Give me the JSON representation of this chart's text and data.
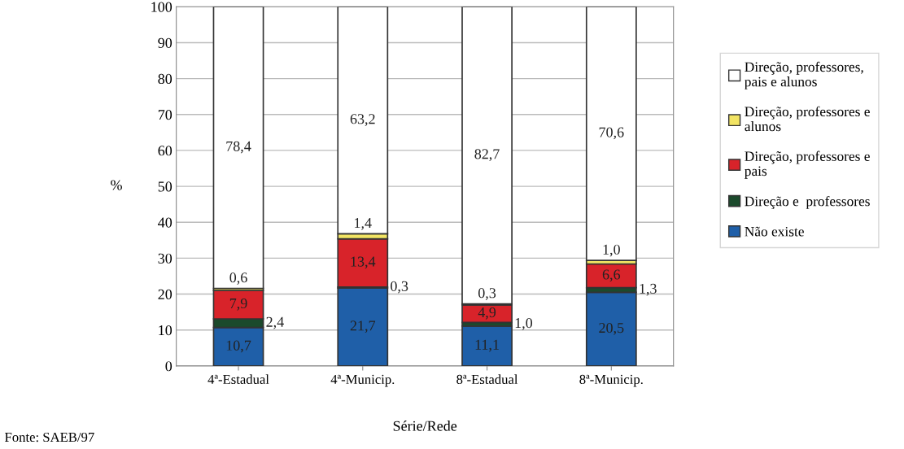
{
  "chart_data": {
    "type": "bar",
    "stacked": true,
    "ylabel": "%",
    "xlabel": "Série/Rede",
    "categories": [
      "4ª-Estadual",
      "4ª-Municip.",
      "8ª-Estadual",
      "8ª-Municip."
    ],
    "series": [
      {
        "name": "Não existe",
        "color": "#1f5fa8",
        "values": [
          10.7,
          21.7,
          11.1,
          20.5
        ],
        "value_labels": [
          "10,7",
          "21,7",
          "11,1",
          "20,5"
        ]
      },
      {
        "name": "Direção e  professores",
        "color": "#1b4a2c",
        "values": [
          2.4,
          0.3,
          1.0,
          1.3
        ],
        "value_labels": [
          "2,4",
          "0,3",
          "1,0",
          "1,3"
        ]
      },
      {
        "name": "Direção, professores e pais",
        "color": "#d8232a",
        "values": [
          7.9,
          13.4,
          4.9,
          6.6
        ],
        "value_labels": [
          "7,9",
          "13,4",
          "4,9",
          "6,6"
        ]
      },
      {
        "name": "Direção, professores e alunos",
        "color": "#f2e463",
        "values": [
          0.6,
          1.4,
          0.3,
          1.0
        ],
        "value_labels": [
          "0,6",
          "1,4",
          "0,3",
          "1,0"
        ]
      },
      {
        "name": "Direção, professores, pais e alunos",
        "color": "#ffffff",
        "values": [
          78.4,
          63.2,
          82.7,
          70.6
        ],
        "value_labels": [
          "78,4",
          "63,2",
          "82,7",
          "70,6"
        ]
      }
    ],
    "ylim": [
      0,
      100
    ],
    "yticks": [
      0,
      10,
      20,
      30,
      40,
      50,
      60,
      70,
      80,
      90,
      100
    ],
    "grid": "y",
    "legend": "right",
    "annotations": [
      "Fonte: SAEB/97"
    ]
  }
}
